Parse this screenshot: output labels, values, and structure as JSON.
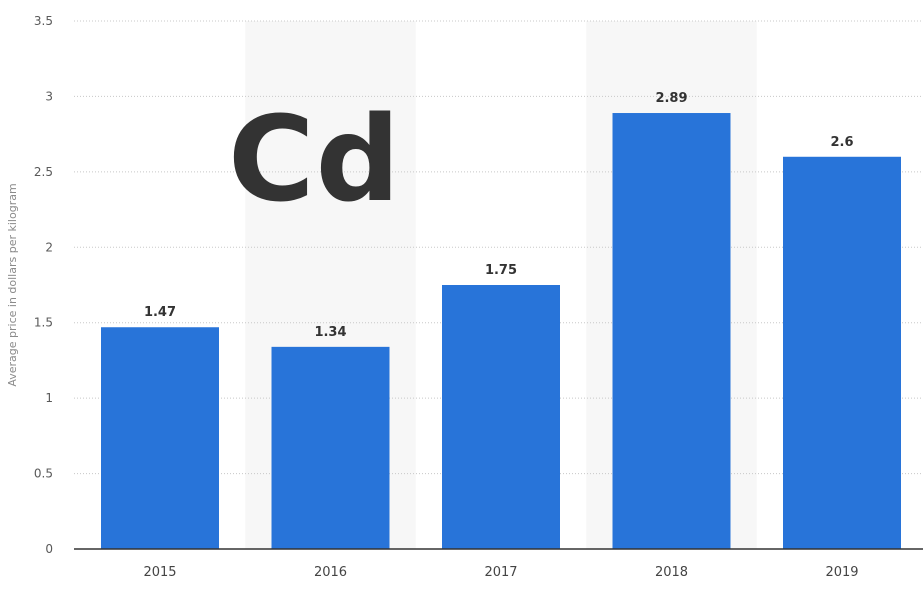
{
  "overlay_text": "Cd",
  "chart_data": {
    "type": "bar",
    "categories": [
      "2015",
      "2016",
      "2017",
      "2018",
      "2019"
    ],
    "values": [
      1.47,
      1.34,
      1.75,
      2.89,
      2.6
    ],
    "data_labels": [
      "1.47",
      "1.34",
      "1.75",
      "2.89",
      "2.6"
    ],
    "ylabel": "Average price in dollars per kilogram",
    "ylim": [
      0,
      3.5
    ],
    "yticks": [
      "0",
      "0.5",
      "1",
      "1.5",
      "2",
      "2.5",
      "3",
      "3.5"
    ],
    "grid": true,
    "alternate_column_shading": true,
    "bar_color": "#2874d9",
    "band_color": "#f7f7f7"
  }
}
